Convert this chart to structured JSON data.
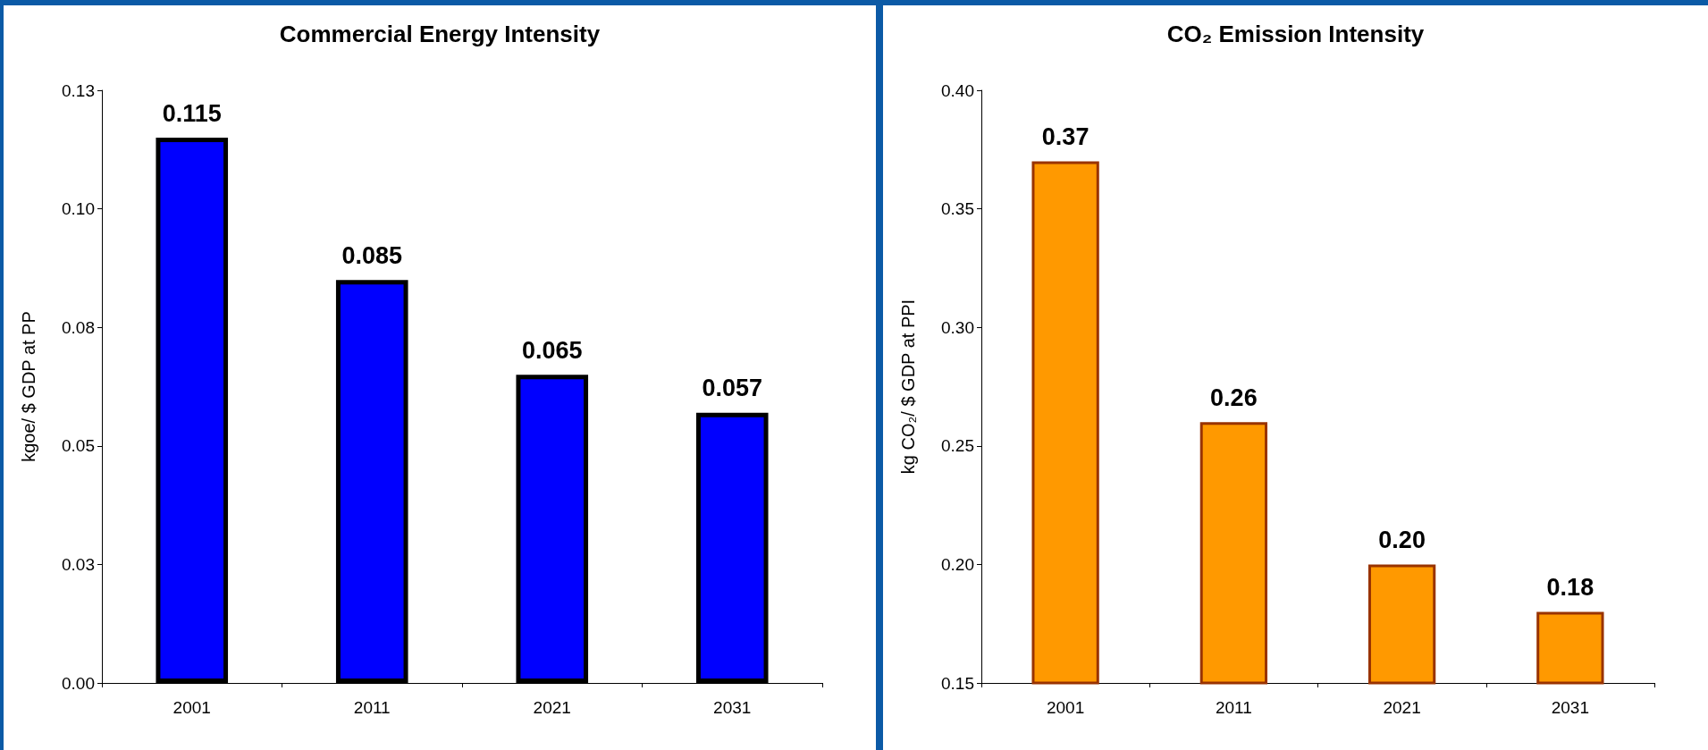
{
  "chart_data": [
    {
      "type": "bar",
      "title": "Commercial Energy Intensity",
      "ylabel": "kgoe/ $ GDP at PP",
      "categories": [
        "2001",
        "2011",
        "2021",
        "2031"
      ],
      "values": [
        0.115,
        0.085,
        0.065,
        0.057
      ],
      "color": "#0000ff",
      "ylim": [
        0,
        0.125
      ],
      "yticks": [
        {
          "value": 0,
          "label": "0.00"
        },
        {
          "value": 0.025,
          "label": "0.03"
        },
        {
          "value": 0.05,
          "label": "0.05"
        },
        {
          "value": 0.075,
          "label": "0.08"
        },
        {
          "value": 0.1,
          "label": "0.10"
        },
        {
          "value": 0.125,
          "label": "0.13"
        }
      ],
      "data_labels": true,
      "grid": false
    },
    {
      "type": "bar",
      "title": "CO₂ Emission Intensity",
      "ylabel": "kg CO₂/ $ GDP at PPI",
      "categories": [
        "2001",
        "2011",
        "2021",
        "2031"
      ],
      "values": [
        0.37,
        0.26,
        0.2,
        0.18
      ],
      "value_labels": [
        "0.37",
        "0.26",
        "0.20",
        "0.18"
      ],
      "color": "#ff9900",
      "ylim": [
        0.15,
        0.4
      ],
      "yticks": [
        {
          "value": 0.15,
          "label": "0.15"
        },
        {
          "value": 0.2,
          "label": "0.20"
        },
        {
          "value": 0.25,
          "label": "0.25"
        },
        {
          "value": 0.3,
          "label": "0.30"
        },
        {
          "value": 0.35,
          "label": "0.35"
        },
        {
          "value": 0.4,
          "label": "0.40"
        }
      ],
      "grid": false
    }
  ]
}
